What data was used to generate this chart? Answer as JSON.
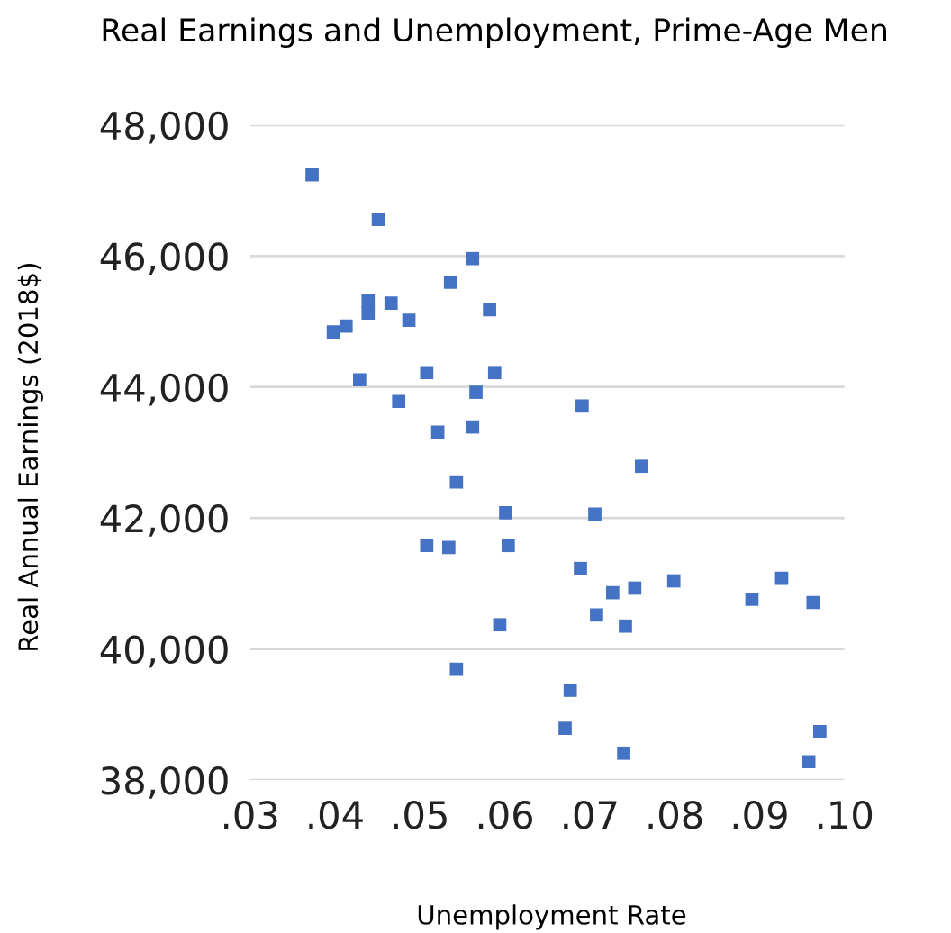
{
  "chart_data": {
    "type": "scatter",
    "title": "Real Earnings and Unemployment, Prime-Age Men",
    "xlabel": "Unemployment Rate",
    "ylabel": "Real Annual Earnings (2018$)",
    "x": [
      0.0373,
      0.0451,
      0.0562,
      0.0536,
      0.0582,
      0.0439,
      0.0439,
      0.0466,
      0.0487,
      0.0398,
      0.0413,
      0.0429,
      0.0508,
      0.0588,
      0.0566,
      0.0475,
      0.0521,
      0.0562,
      0.0691,
      0.0543,
      0.0601,
      0.0508,
      0.0534,
      0.0604,
      0.0594,
      0.0543,
      0.0677,
      0.0671,
      0.0761,
      0.0706,
      0.0689,
      0.0727,
      0.0753,
      0.0799,
      0.0708,
      0.0742,
      0.0891,
      0.0926,
      0.0963,
      0.074,
      0.0971,
      0.0958
    ],
    "series": [
      {
        "color": "#4472c4",
        "values": [
          47240,
          46560,
          45960,
          45600,
          45180,
          45310,
          45130,
          45280,
          45020,
          44840,
          44930,
          44110,
          44220,
          44220,
          43920,
          43780,
          43310,
          43390,
          43710,
          42550,
          42080,
          41580,
          41550,
          41580,
          40370,
          39690,
          39370,
          38790,
          42790,
          42060,
          41230,
          40860,
          40930,
          41040,
          40520,
          40350,
          40760,
          41080,
          40710,
          38410,
          38740,
          38280
        ]
      }
    ],
    "xlim": [
      0.03,
      0.1
    ],
    "xticks": [
      {
        "value": 0.03,
        "label": ".03"
      },
      {
        "value": 0.04,
        "label": ".04"
      },
      {
        "value": 0.05,
        "label": ".05"
      },
      {
        "value": 0.06,
        "label": ".06"
      },
      {
        "value": 0.07,
        "label": ".07"
      },
      {
        "value": 0.08,
        "label": ".08"
      },
      {
        "value": 0.09,
        "label": ".09"
      },
      {
        "value": 0.1,
        "label": ".10"
      }
    ],
    "ylim": [
      38000,
      48000
    ],
    "yticks": [
      {
        "value": 38000,
        "label": "38,000"
      },
      {
        "value": 40000,
        "label": "40,000"
      },
      {
        "value": 42000,
        "label": "42,000"
      },
      {
        "value": 44000,
        "label": "44,000"
      },
      {
        "value": 46000,
        "label": "46,000"
      },
      {
        "value": 48000,
        "label": "48,000"
      }
    ],
    "grid": "y",
    "marker": "square"
  }
}
